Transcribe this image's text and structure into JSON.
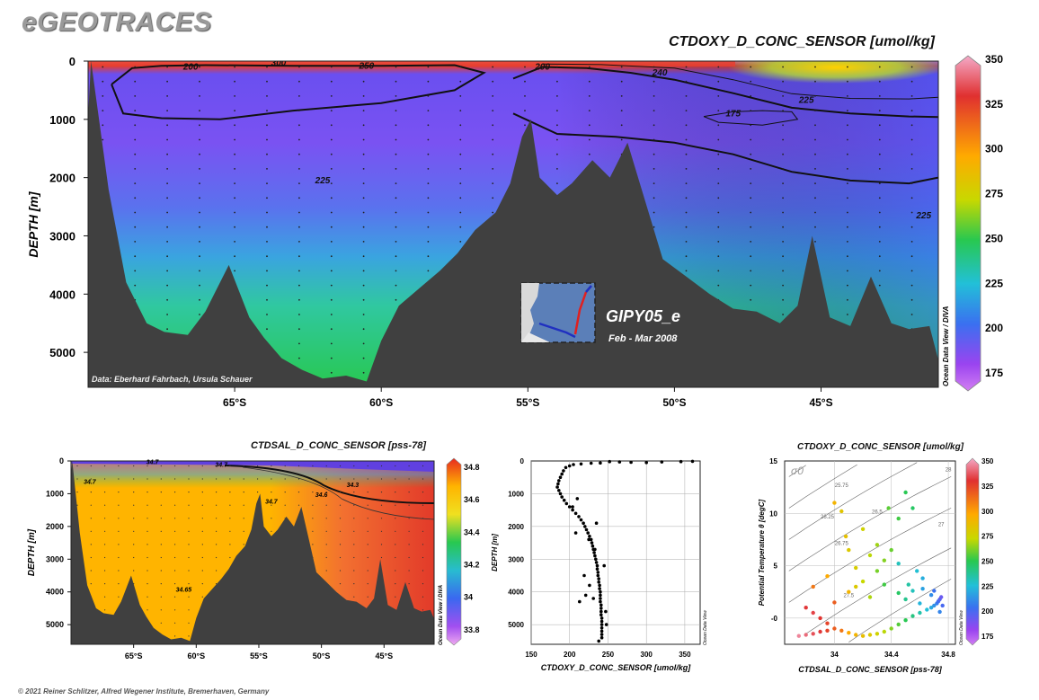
{
  "header": {
    "logo": "eGEOTRACES",
    "credits": "© 2021 Reiner Schlitzer, Alfred Wegener Institute, Bremerhaven, Germany"
  },
  "main_panel": {
    "title": "CTDOXY_D_CONC_SENSOR [umol/kg]",
    "ylabel": "DEPTH [m]",
    "yticks": [
      "0",
      "1000",
      "2000",
      "3000",
      "4000",
      "5000"
    ],
    "xticks": [
      "65°S",
      "60°S",
      "55°S",
      "50°S",
      "45°S"
    ],
    "colorbar_ticks": [
      "350",
      "325",
      "300",
      "275",
      "250",
      "225",
      "200",
      "175"
    ],
    "contour_labels": [
      "200",
      "300",
      "250",
      "200",
      "240",
      "225",
      "175",
      "225",
      "225"
    ],
    "data_credit": "Data: Eberhard Fahrbach, Ursula Schauer",
    "cruise": "GIPY05_e",
    "period": "Feb - Mar 2008",
    "odv_label": "Ocean Data View / DIVA"
  },
  "sal_panel": {
    "title": "CTDSAL_D_CONC_SENSOR [pss-78]",
    "ylabel": "DEPTH [m]",
    "yticks": [
      "0",
      "1000",
      "2000",
      "3000",
      "4000",
      "5000"
    ],
    "xticks": [
      "65°S",
      "60°S",
      "55°S",
      "50°S",
      "45°S"
    ],
    "colorbar_ticks": [
      "34.8",
      "34.6",
      "34.4",
      "34.2",
      "34",
      "33.8"
    ],
    "contour_labels": [
      "34.7",
      "34.7",
      "34.7",
      "34.6",
      "34.3",
      "34.65",
      "34.7"
    ],
    "odv_label": "Ocean Data View / DIVA"
  },
  "colors": {
    "oxy_scale": [
      "#f4aac8",
      "#e03030",
      "#ffaa00",
      "#c8d800",
      "#28c850",
      "#22c0d8",
      "#3a70f0",
      "#9a44f0",
      "#d27ef2"
    ],
    "sal_scale": [
      "#f0aaf0",
      "#a24ff0",
      "#3a68f0",
      "#28bcd0",
      "#28c850",
      "#f0e020",
      "#ffb400",
      "#e82a20"
    ],
    "bathymetry": "#404040"
  },
  "chart_data": [
    {
      "type": "heatmap",
      "title": "CTDOXY_D_CONC_SENSOR [umol/kg]",
      "ylabel": "DEPTH [m]",
      "xlim": [
        -70,
        -41
      ],
      "ylim": [
        5600,
        0
      ],
      "colorbar_range": [
        165,
        352
      ],
      "stations_lat": [
        -69.5,
        -68.4,
        -67.3,
        -66.2,
        -65.0,
        -63.9,
        -62.8,
        -61.7,
        -60.6,
        -59.5,
        -58.4,
        -57.3,
        -56.2,
        -55.1,
        -54.0,
        -52.9,
        -51.8,
        -50.7,
        -49.6,
        -48.5,
        -47.4,
        -46.3,
        -45.2,
        -44.1,
        -43.0,
        -41.9
      ],
      "bottom_profile": {
        "lat": [
          -69.9,
          -69.3,
          -68.7,
          -68.0,
          -67.4,
          -66.6,
          -66.0,
          -65.2,
          -64.5,
          -64.0,
          -63.4,
          -62.7,
          -62.0,
          -61.2,
          -60.5,
          -60.0,
          -59.4,
          -58.7,
          -58.0,
          -57.4,
          -56.8,
          -56.1,
          -55.6,
          -55.2,
          -54.9,
          -54.6,
          -54.0,
          -53.5,
          -52.8,
          -52.2,
          -51.6,
          -51.0,
          -50.4,
          -49.6,
          -48.8,
          -48.0,
          -47.2,
          -46.4,
          -45.8,
          -45.3,
          -44.7,
          -44.0,
          -43.3,
          -42.6,
          -42.0,
          -41.3
        ],
        "depth": [
          0,
          2200,
          3800,
          4500,
          4650,
          4700,
          4300,
          3500,
          4400,
          4750,
          5100,
          5300,
          5450,
          5400,
          5500,
          4800,
          4200,
          3900,
          3600,
          3300,
          2900,
          2600,
          2100,
          1300,
          1000,
          2000,
          2300,
          2100,
          1700,
          2000,
          1400,
          2400,
          3400,
          3700,
          4000,
          4250,
          4300,
          4500,
          4200,
          3000,
          4400,
          4550,
          3700,
          4500,
          4600,
          4550
        ]
      },
      "contours": [
        {
          "level": 200,
          "lat": [
            -69.2,
            -68.5,
            -67.5,
            -66.0,
            -63.0,
            -60.0,
            -57.5,
            -56.5,
            -57.5,
            -60.0,
            -63.0,
            -65.5,
            -67.5,
            -68.8,
            -69.2
          ],
          "depth": [
            400,
            120,
            80,
            70,
            80,
            80,
            70,
            200,
            500,
            720,
            850,
            1000,
            980,
            900,
            400
          ]
        },
        {
          "level": 200,
          "lat": [
            -55.5,
            -54.5,
            -53.0,
            -51.5,
            -50.0,
            -48.0,
            -46.0,
            -44.0,
            -42.0,
            -41.0
          ],
          "depth": [
            300,
            100,
            120,
            200,
            320,
            550,
            800,
            900,
            950,
            960
          ]
        },
        {
          "level": 225,
          "lat": [
            -55.5,
            -54.0,
            -52.0,
            -50.0,
            -48.0,
            -46.0,
            -44.0,
            -42.0,
            -41.0
          ],
          "depth": [
            900,
            1250,
            1300,
            1400,
            1600,
            1900,
            2050,
            2100,
            2000
          ]
        },
        {
          "level": 240,
          "lat": [
            -54.5,
            -52.5,
            -50.0,
            -48.0,
            -46.0,
            -44.0,
            -42.0,
            -41.0
          ],
          "depth": [
            50,
            60,
            120,
            320,
            560,
            640,
            650,
            620
          ]
        },
        {
          "level": 175,
          "lat": [
            -49.0,
            -48.0,
            -47.0,
            -46.0,
            -45.8,
            -47.0,
            -48.5,
            -49.0
          ],
          "depth": [
            950,
            870,
            850,
            870,
            1000,
            1100,
            1050,
            950
          ]
        }
      ]
    },
    {
      "type": "heatmap",
      "title": "CTDSAL_D_CONC_SENSOR [pss-78]",
      "ylabel": "DEPTH [m]",
      "xlim": [
        -70,
        -41
      ],
      "ylim": [
        5600,
        0
      ],
      "colorbar_range": [
        33.7,
        34.85
      ],
      "bottom_profile_ref": "same bathymetry as oxygen section"
    },
    {
      "type": "scatter",
      "xlabel": "CTDOXY_D_CONC_SENSOR [umol/kg]",
      "ylabel": "DEPTH [m]",
      "xlim": [
        150,
        370
      ],
      "ylim": [
        5600,
        0
      ],
      "xticks": [
        "150",
        "200",
        "250",
        "300",
        "350"
      ],
      "yticks": [
        "0",
        "1000",
        "2000",
        "3000",
        "4000",
        "5000"
      ],
      "odv_label": "Ocean Data View",
      "series": [
        {
          "points": [
            [
              252,
              20
            ],
            [
              265,
              30
            ],
            [
              280,
              40
            ],
            [
              300,
              50
            ],
            [
              320,
              30
            ],
            [
              345,
              20
            ],
            [
              360,
              10
            ],
            [
              240,
              60
            ],
            [
              228,
              70
            ],
            [
              215,
              90
            ],
            [
              205,
              110
            ],
            [
              200,
              150
            ],
            [
              195,
              200
            ],
            [
              192,
              300
            ],
            [
              190,
              400
            ],
            [
              188,
              500
            ],
            [
              186,
              600
            ],
            [
              185,
              700
            ],
            [
              184,
              800
            ],
            [
              186,
              900
            ],
            [
              188,
              1000
            ],
            [
              190,
              1100
            ],
            [
              193,
              1200
            ],
            [
              196,
              1300
            ],
            [
              200,
              1400
            ],
            [
              204,
              1500
            ],
            [
              208,
              1600
            ],
            [
              212,
              1700
            ],
            [
              215,
              1800
            ],
            [
              218,
              1900
            ],
            [
              220,
              2000
            ],
            [
              222,
              2100
            ],
            [
              224,
              2200
            ],
            [
              226,
              2300
            ],
            [
              228,
              2400
            ],
            [
              229,
              2500
            ],
            [
              230,
              2600
            ],
            [
              231,
              2700
            ],
            [
              232,
              2800
            ],
            [
              233,
              2900
            ],
            [
              234,
              3000
            ],
            [
              235,
              3100
            ],
            [
              236,
              3200
            ],
            [
              236,
              3300
            ],
            [
              237,
              3400
            ],
            [
              237,
              3500
            ],
            [
              238,
              3600
            ],
            [
              238,
              3700
            ],
            [
              239,
              3800
            ],
            [
              239,
              3900
            ],
            [
              240,
              4000
            ],
            [
              240,
              4100
            ],
            [
              240,
              4200
            ],
            [
              240,
              4300
            ],
            [
              241,
              4400
            ],
            [
              241,
              4500
            ],
            [
              241,
              4600
            ],
            [
              241,
              4700
            ],
            [
              242,
              4800
            ],
            [
              242,
              4900
            ],
            [
              242,
              5000
            ],
            [
              242,
              5100
            ],
            [
              242,
              5200
            ],
            [
              242,
              5300
            ],
            [
              242,
              5400
            ],
            [
              225,
              2400
            ],
            [
              233,
              2700
            ],
            [
              245,
              3200
            ],
            [
              213,
              4300
            ],
            [
              221,
              4100
            ],
            [
              247,
              4600
            ],
            [
              210,
              1150
            ],
            [
              235,
              1900
            ],
            [
              226,
              3800
            ],
            [
              248,
              5000
            ],
            [
              238,
              5500
            ],
            [
              231,
              4200
            ],
            [
              219,
              3500
            ],
            [
              208,
              2200
            ],
            [
              204,
              1400
            ]
          ]
        }
      ]
    },
    {
      "type": "scatter",
      "title": "CTDOXY_D_CONC_SENSOR [umol/kg]",
      "xlabel": "CTDSAL_D_CONC_SENSOR [pss-78]",
      "ylabel": "Potential Temperature θ [degC]",
      "xlim": [
        33.65,
        34.85
      ],
      "ylim": [
        -2.5,
        15
      ],
      "xticks": [
        "34",
        "34.4",
        "34.8"
      ],
      "yticks": [
        "-0",
        "5",
        "10",
        "15"
      ],
      "colorbar_range": [
        165,
        352
      ],
      "colorbar_ticks": [
        "350",
        "325",
        "300",
        "275",
        "250",
        "225",
        "200",
        "175"
      ],
      "sigma_label": "σ0",
      "isopycnal_labels": [
        "25.75",
        "26.25",
        "26.5",
        "26.75",
        "27",
        "27.5",
        "28"
      ],
      "odv_label": "Ocean Data View",
      "series": [
        {
          "points": [
            [
              33.75,
              -1.7,
              345
            ],
            [
              33.8,
              -1.6,
              340
            ],
            [
              33.85,
              -1.5,
              335
            ],
            [
              33.9,
              -1.3,
              330
            ],
            [
              33.95,
              -1.2,
              325
            ],
            [
              34.0,
              -1.0,
              320
            ],
            [
              34.05,
              -1.2,
              315
            ],
            [
              34.1,
              -1.4,
              305
            ],
            [
              34.15,
              -1.6,
              300
            ],
            [
              34.2,
              -1.7,
              295
            ],
            [
              34.25,
              -1.6,
              290
            ],
            [
              34.3,
              -1.5,
              285
            ],
            [
              34.35,
              -1.3,
              280
            ],
            [
              34.4,
              -1.0,
              272
            ],
            [
              34.45,
              -0.6,
              265
            ],
            [
              34.5,
              -0.2,
              258
            ],
            [
              34.55,
              0.2,
              250
            ],
            [
              34.6,
              0.5,
              243
            ],
            [
              34.65,
              0.8,
              235
            ],
            [
              34.68,
              1.0,
              228
            ],
            [
              34.7,
              1.2,
              222
            ],
            [
              34.72,
              1.4,
              215
            ],
            [
              34.73,
              1.6,
              210
            ],
            [
              34.74,
              1.8,
              205
            ],
            [
              34.75,
              2.0,
              200
            ],
            [
              33.8,
              1.0,
              330
            ],
            [
              33.85,
              0.5,
              332
            ],
            [
              33.9,
              0.0,
              328
            ],
            [
              33.95,
              -0.5,
              325
            ],
            [
              34.0,
              1.5,
              320
            ],
            [
              34.1,
              2.5,
              300
            ],
            [
              34.15,
              3.0,
              290
            ],
            [
              34.2,
              3.5,
              282
            ],
            [
              34.25,
              2.0,
              278
            ],
            [
              34.3,
              4.5,
              270
            ],
            [
              34.35,
              3.2,
              262
            ],
            [
              34.45,
              2.4,
              255
            ],
            [
              34.5,
              1.8,
              248
            ],
            [
              34.55,
              2.6,
              240
            ],
            [
              34.6,
              1.4,
              232
            ],
            [
              34.62,
              2.8,
              226
            ],
            [
              34.68,
              2.2,
              220
            ],
            [
              34.7,
              2.6,
              212
            ],
            [
              34.76,
              1.2,
              208
            ],
            [
              34.74,
              0.6,
              218
            ],
            [
              34.0,
              11.0,
              300
            ],
            [
              34.05,
              10.2,
              292
            ],
            [
              34.2,
              8.5,
              285
            ],
            [
              34.3,
              7.0,
              276
            ],
            [
              34.4,
              6.5,
              268
            ],
            [
              34.45,
              9.5,
              262
            ],
            [
              34.5,
              12.0,
              258
            ],
            [
              34.55,
              10.5,
              255
            ],
            [
              34.35,
              5.5,
              272
            ],
            [
              34.25,
              6.0,
              280
            ],
            [
              34.1,
              6.5,
              290
            ],
            [
              33.95,
              4.0,
              305
            ],
            [
              33.85,
              3.0,
              315
            ],
            [
              34.45,
              5.2,
              240
            ],
            [
              34.58,
              4.5,
              236
            ],
            [
              34.62,
              3.8,
              230
            ],
            [
              34.52,
              3.2,
              244
            ],
            [
              34.15,
              4.8,
              288
            ],
            [
              34.08,
              7.8,
              294
            ],
            [
              34.38,
              10.5,
              266
            ]
          ]
        }
      ]
    }
  ]
}
